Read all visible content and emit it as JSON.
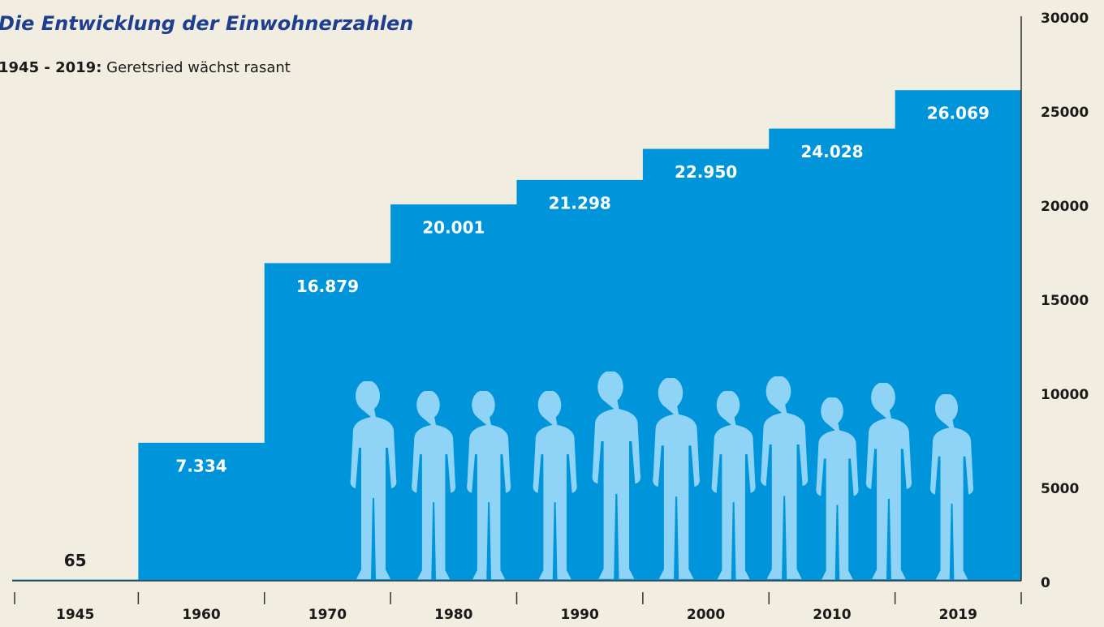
{
  "chart_data": {
    "type": "bar",
    "title": "Die Entwicklung der Einwohnerzahlen",
    "subtitle_lead": "1945 - 2019:",
    "subtitle": "Geretsried wächst rasant",
    "categories": [
      "1945",
      "1960",
      "1970",
      "1980",
      "1990",
      "2000",
      "2010",
      "2019"
    ],
    "values": [
      65,
      7334,
      16879,
      20001,
      21298,
      22950,
      24028,
      26069
    ],
    "value_labels": [
      "65",
      "7.334",
      "16.879",
      "20.001",
      "21.298",
      "22.950",
      "24.028",
      "26.069"
    ],
    "color": "#0094da",
    "ylim": [
      0,
      30000
    ],
    "yticks": [
      0,
      5000,
      10000,
      15000,
      20000,
      25000,
      30000
    ],
    "grid": false
  }
}
